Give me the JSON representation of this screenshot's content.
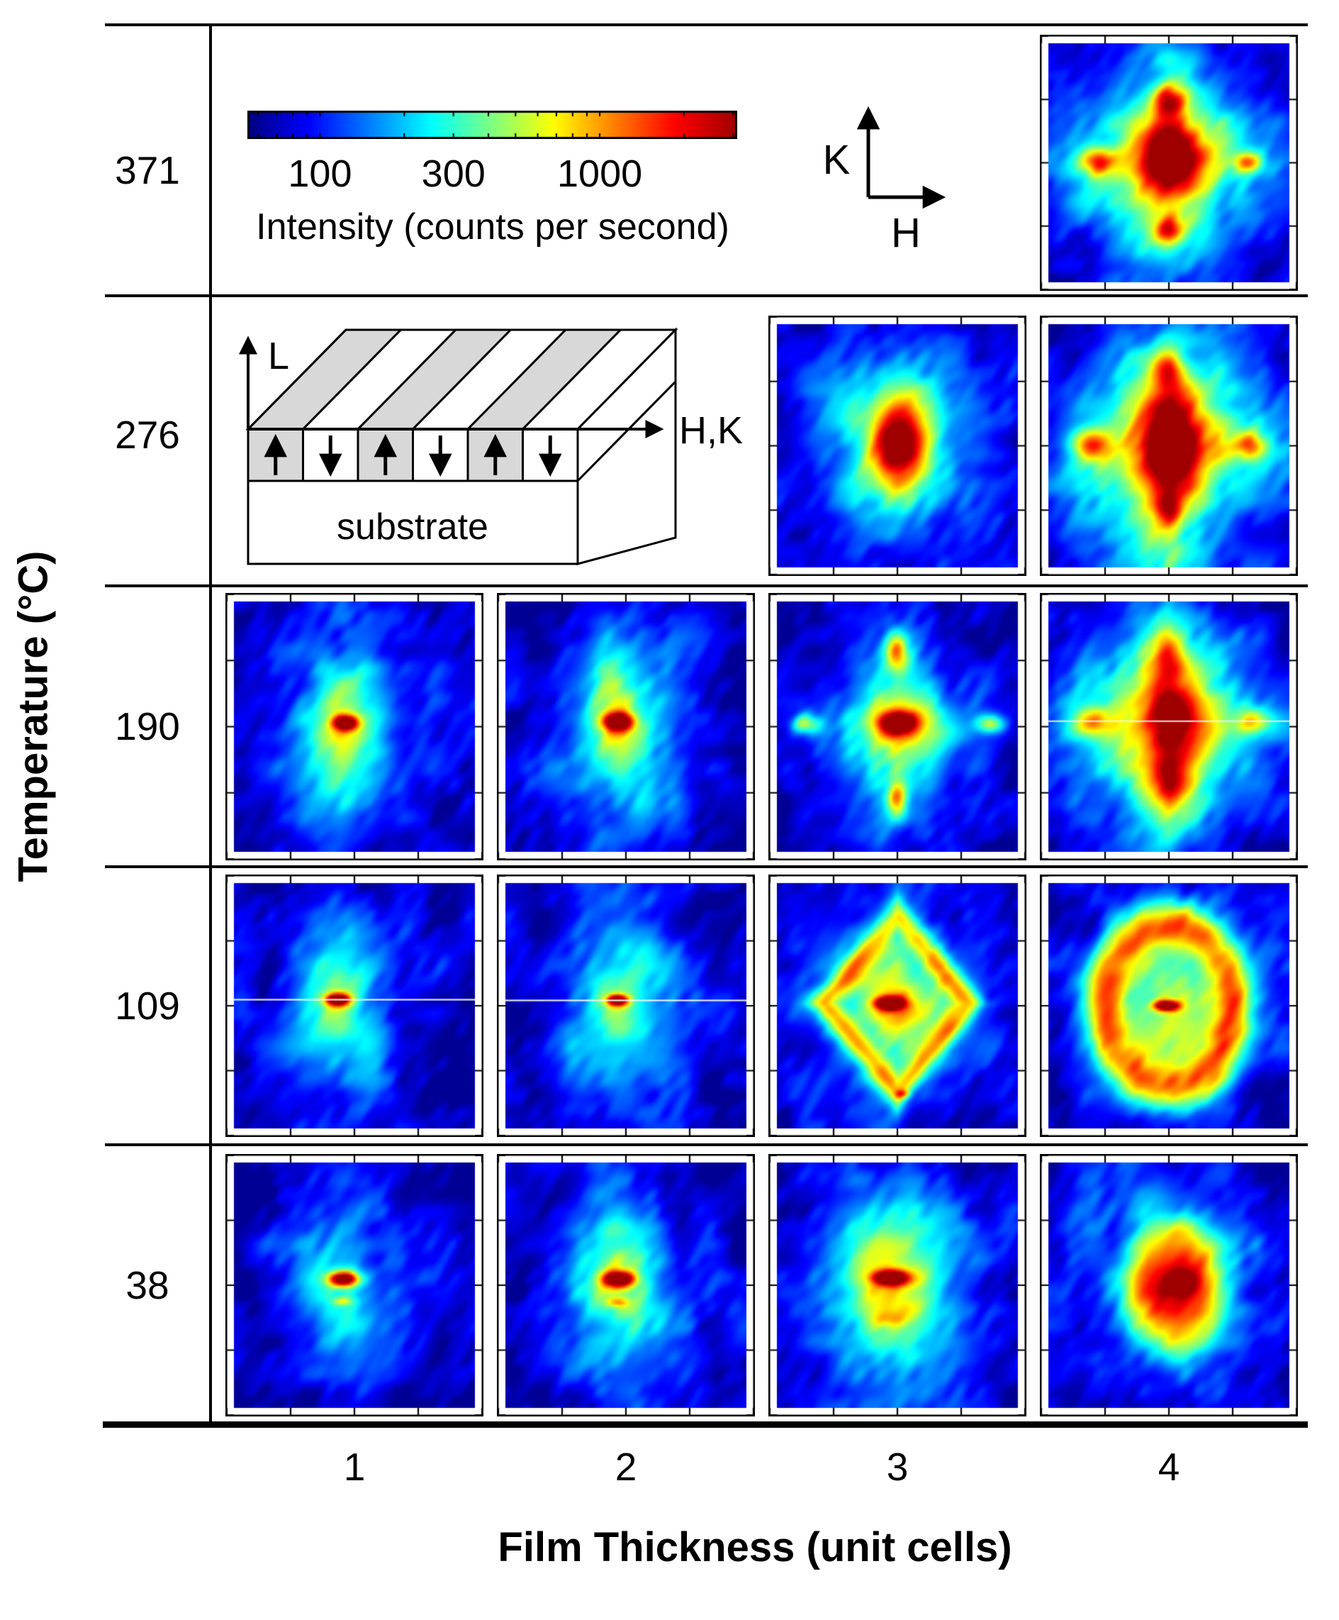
{
  "figure": {
    "ylabel": "Temperature (°C)",
    "xlabel": "Film Thickness (unit cells)",
    "row_labels": [
      "371",
      "276",
      "190",
      "109",
      "38"
    ],
    "col_labels": [
      "1",
      "2",
      "3",
      "4"
    ],
    "colorbar": {
      "label": "Intensity (counts per second)",
      "tick_labels": [
        "100",
        "300",
        "1000"
      ],
      "tick_values": [
        100,
        300,
        1000
      ],
      "minor_ticks": [
        60,
        70,
        80,
        90,
        100,
        200,
        300,
        400,
        500,
        600,
        700,
        800,
        900,
        1000,
        2000,
        3000
      ],
      "scale": "log",
      "range_min": 55,
      "range_max": 3100
    },
    "axes_key": {
      "vertical": "K",
      "horizontal": "H"
    },
    "schematic": {
      "vertical_axis": "L",
      "horizontal_axis": "H,K",
      "substrate": "substrate",
      "domain_arrows": [
        "up",
        "down",
        "up",
        "down",
        "up",
        "down"
      ],
      "stripe_gray": "#d8d8d8",
      "stripe_white": "#ffffff"
    }
  },
  "chart_data": {
    "type": "heatmap",
    "colormap": "jet",
    "x_dimension": "Film Thickness (unit cells)",
    "y_dimension": "Temperature (°C)",
    "temperatures": [
      371,
      276,
      190,
      109,
      38
    ],
    "thicknesses": [
      1,
      2,
      3,
      4
    ],
    "intensity_units": "counts per second",
    "intensity_scale": {
      "type": "log",
      "min": 55,
      "max": 3100,
      "labeled_ticks": [
        100,
        300,
        1000
      ]
    },
    "panels": [
      {
        "temperature": 371,
        "thickness": 4,
        "seed": 1,
        "base": 0.15,
        "hline": null,
        "description": "Four-fold diffuse star: intense central peak with satellites above, below, left and right",
        "features": [
          {
            "t": "diamond",
            "x": 0.5,
            "y": 0.49,
            "rx": 0.4,
            "ry": 0.46,
            "a": 0.38
          },
          {
            "t": "gauss",
            "x": 0.5,
            "y": 0.49,
            "sx": 0.3,
            "sy": 0.34,
            "a": 0.12
          },
          {
            "t": "gauss",
            "x": 0.5,
            "y": 0.47,
            "sx": 0.1,
            "sy": 0.13,
            "a": 0.45
          },
          {
            "t": "gauss",
            "x": 0.5,
            "y": 0.47,
            "sx": 0.06,
            "sy": 0.085,
            "a": 0.28
          },
          {
            "t": "gauss",
            "x": 0.5,
            "y": 0.235,
            "sx": 0.05,
            "sy": 0.045,
            "a": 0.42
          },
          {
            "t": "gauss",
            "x": 0.5,
            "y": 0.78,
            "sx": 0.045,
            "sy": 0.04,
            "a": 0.4
          },
          {
            "t": "gauss",
            "x": 0.21,
            "y": 0.5,
            "sx": 0.05,
            "sy": 0.04,
            "a": 0.45
          },
          {
            "t": "gauss",
            "x": 0.83,
            "y": 0.5,
            "sx": 0.04,
            "sy": 0.03,
            "a": 0.42
          }
        ]
      },
      {
        "temperature": 276,
        "thickness": 3,
        "seed": 2,
        "base": 0.14,
        "hline": null,
        "description": "Single intense central peak with broad diffuse halo",
        "features": [
          {
            "t": "gauss",
            "x": 0.5,
            "y": 0.5,
            "sx": 0.2,
            "sy": 0.27,
            "a": 0.3
          },
          {
            "t": "gauss",
            "x": 0.5,
            "y": 0.5,
            "sx": 0.115,
            "sy": 0.175,
            "a": 0.3
          },
          {
            "t": "gauss",
            "x": 0.5,
            "y": 0.49,
            "sx": 0.065,
            "sy": 0.115,
            "a": 0.5
          }
        ]
      },
      {
        "temperature": 276,
        "thickness": 4,
        "seed": 3,
        "base": 0.15,
        "hline": null,
        "description": "Intense central peak with four satellite peaks forming a diamond-shaped diffuse star",
        "features": [
          {
            "t": "diamond",
            "x": 0.5,
            "y": 0.5,
            "rx": 0.42,
            "ry": 0.5,
            "a": 0.42
          },
          {
            "t": "gauss",
            "x": 0.5,
            "y": 0.5,
            "sx": 0.28,
            "sy": 0.34,
            "a": 0.15
          },
          {
            "t": "gauss",
            "x": 0.5,
            "y": 0.5,
            "sx": 0.09,
            "sy": 0.16,
            "a": 0.42
          },
          {
            "t": "gauss",
            "x": 0.5,
            "y": 0.49,
            "sx": 0.055,
            "sy": 0.1,
            "a": 0.28
          },
          {
            "t": "gauss",
            "x": 0.18,
            "y": 0.5,
            "sx": 0.05,
            "sy": 0.045,
            "a": 0.4
          },
          {
            "t": "gauss",
            "x": 0.84,
            "y": 0.5,
            "sx": 0.045,
            "sy": 0.04,
            "a": 0.38
          },
          {
            "t": "gauss",
            "x": 0.5,
            "y": 0.19,
            "sx": 0.045,
            "sy": 0.05,
            "a": 0.38
          },
          {
            "t": "gauss",
            "x": 0.5,
            "y": 0.76,
            "sx": 0.04,
            "sy": 0.05,
            "a": 0.36
          },
          {
            "t": "gauss",
            "x": 0.5,
            "y": 0.99,
            "sx": 0.14,
            "sy": 0.09,
            "a": 0.15
          }
        ]
      },
      {
        "temperature": 190,
        "thickness": 1,
        "seed": 4,
        "base": 0.13,
        "hline": null,
        "description": "Weak sharp central spot on diffuse vertical streak",
        "features": [
          {
            "t": "gauss",
            "x": 0.47,
            "y": 0.52,
            "sx": 0.16,
            "sy": 0.3,
            "a": 0.26
          },
          {
            "t": "gauss",
            "x": 0.46,
            "y": 0.5,
            "sx": 0.085,
            "sy": 0.16,
            "a": 0.17
          },
          {
            "t": "gauss",
            "x": 0.465,
            "y": 0.485,
            "sx": 0.034,
            "sy": 0.02,
            "a": 0.75
          }
        ]
      },
      {
        "temperature": 190,
        "thickness": 2,
        "seed": 5,
        "base": 0.13,
        "hline": null,
        "description": "Sharp central spot with stronger diffuse halo",
        "features": [
          {
            "t": "gauss",
            "x": 0.48,
            "y": 0.5,
            "sx": 0.17,
            "sy": 0.3,
            "a": 0.28
          },
          {
            "t": "gauss",
            "x": 0.47,
            "y": 0.5,
            "sx": 0.09,
            "sy": 0.16,
            "a": 0.2
          },
          {
            "t": "gauss",
            "x": 0.47,
            "y": 0.48,
            "sx": 0.042,
            "sy": 0.024,
            "a": 0.78
          }
        ]
      },
      {
        "temperature": 190,
        "thickness": 3,
        "seed": 6,
        "base": 0.13,
        "hline": null,
        "description": "Central spot with four weak satellite peaks (cross pattern) in diffuse halo",
        "features": [
          {
            "t": "gauss",
            "x": 0.5,
            "y": 0.5,
            "sx": 0.14,
            "sy": 0.28,
            "a": 0.25
          },
          {
            "t": "gauss",
            "x": 0.5,
            "y": 0.49,
            "sx": 0.26,
            "sy": 0.1,
            "a": 0.18
          },
          {
            "t": "gauss",
            "x": 0.5,
            "y": 0.49,
            "sx": 0.1,
            "sy": 0.07,
            "a": 0.25
          },
          {
            "t": "gauss",
            "x": 0.5,
            "y": 0.485,
            "sx": 0.048,
            "sy": 0.028,
            "a": 0.72
          },
          {
            "t": "gauss",
            "x": 0.5,
            "y": 0.2,
            "sx": 0.032,
            "sy": 0.05,
            "a": 0.5
          },
          {
            "t": "gauss",
            "x": 0.5,
            "y": 0.79,
            "sx": 0.028,
            "sy": 0.05,
            "a": 0.48
          },
          {
            "t": "gauss",
            "x": 0.12,
            "y": 0.49,
            "sx": 0.045,
            "sy": 0.028,
            "a": 0.38
          },
          {
            "t": "gauss",
            "x": 0.89,
            "y": 0.49,
            "sx": 0.042,
            "sy": 0.026,
            "a": 0.4
          }
        ]
      },
      {
        "temperature": 190,
        "thickness": 4,
        "seed": 7,
        "base": 0.15,
        "hline": {
          "y": 0.478,
          "alpha": 0.8
        },
        "description": "Strong diamond-shaped diffuse scattering with intense central column and satellites; horizontal detector line",
        "features": [
          {
            "t": "diamond",
            "x": 0.5,
            "y": 0.5,
            "rx": 0.4,
            "ry": 0.47,
            "a": 0.55
          },
          {
            "t": "gauss",
            "x": 0.5,
            "y": 0.5,
            "sx": 0.085,
            "sy": 0.22,
            "a": 0.28
          },
          {
            "t": "gauss",
            "x": 0.5,
            "y": 0.47,
            "sx": 0.055,
            "sy": 0.1,
            "a": 0.18
          },
          {
            "t": "gauss",
            "x": 0.17,
            "y": 0.48,
            "sx": 0.055,
            "sy": 0.045,
            "a": 0.35
          },
          {
            "t": "gauss",
            "x": 0.85,
            "y": 0.48,
            "sx": 0.05,
            "sy": 0.04,
            "a": 0.33
          },
          {
            "t": "gauss",
            "x": 0.5,
            "y": 0.21,
            "sx": 0.05,
            "sy": 0.06,
            "a": 0.24
          },
          {
            "t": "gauss",
            "x": 0.5,
            "y": 0.73,
            "sx": 0.045,
            "sy": 0.06,
            "a": 0.24
          }
        ]
      },
      {
        "temperature": 109,
        "thickness": 1,
        "seed": 8,
        "base": 0.12,
        "hline": {
          "y": 0.475,
          "alpha": 0.9
        },
        "description": "Sharp central spot on weak diffuse halo; horizontal detector line",
        "features": [
          {
            "t": "gauss",
            "x": 0.44,
            "y": 0.53,
            "sx": 0.16,
            "sy": 0.3,
            "a": 0.22
          },
          {
            "t": "gauss",
            "x": 0.43,
            "y": 0.5,
            "sx": 0.08,
            "sy": 0.15,
            "a": 0.16
          },
          {
            "t": "gauss",
            "x": 0.43,
            "y": 0.475,
            "sx": 0.035,
            "sy": 0.018,
            "a": 0.8
          }
        ]
      },
      {
        "temperature": 109,
        "thickness": 2,
        "seed": 9,
        "base": 0.12,
        "hline": {
          "y": 0.478,
          "alpha": 0.9
        },
        "description": "Sharp central spot on weak diffuse halo; horizontal detector line",
        "features": [
          {
            "t": "gauss",
            "x": 0.47,
            "y": 0.52,
            "sx": 0.17,
            "sy": 0.3,
            "a": 0.24
          },
          {
            "t": "gauss",
            "x": 0.46,
            "y": 0.5,
            "sx": 0.085,
            "sy": 0.15,
            "a": 0.16
          },
          {
            "t": "gauss",
            "x": 0.465,
            "y": 0.478,
            "sx": 0.03,
            "sy": 0.016,
            "a": 0.8
          }
        ]
      },
      {
        "temperature": 109,
        "thickness": 3,
        "seed": 10,
        "base": 0.13,
        "hline": null,
        "description": "Hollow diamond-shaped diffuse ring surrounding sharp central spot",
        "features": [
          {
            "t": "gauss",
            "x": 0.5,
            "y": 0.5,
            "sx": 0.25,
            "sy": 0.3,
            "a": 0.12
          },
          {
            "t": "dring",
            "x": 0.5,
            "y": 0.49,
            "rx": 0.3,
            "ry": 0.36,
            "w": 0.22,
            "a": 0.42
          },
          {
            "t": "diamond",
            "x": 0.5,
            "y": 0.49,
            "rx": 0.3,
            "ry": 0.36,
            "a": 0.26
          },
          {
            "t": "gauss",
            "x": 0.5,
            "y": 0.49,
            "sx": 0.1,
            "sy": 0.12,
            "a": 0.18
          },
          {
            "t": "gauss",
            "x": 0.47,
            "y": 0.49,
            "sx": 0.04,
            "sy": 0.018,
            "a": 0.85
          },
          {
            "t": "gauss",
            "x": 0.52,
            "y": 0.86,
            "sx": 0.02,
            "sy": 0.012,
            "a": 0.28
          }
        ]
      },
      {
        "temperature": 109,
        "thickness": 4,
        "seed": 11,
        "base": 0.13,
        "hline": null,
        "description": "Intense closed diffuse ring (annulus) surrounding sharp central spot",
        "features": [
          {
            "t": "gauss",
            "x": 0.5,
            "y": 0.5,
            "sx": 0.27,
            "sy": 0.32,
            "a": 0.15
          },
          {
            "t": "ring",
            "x": 0.5,
            "y": 0.5,
            "rx": 0.27,
            "ry": 0.335,
            "w": 0.3,
            "a": 0.5
          },
          {
            "t": "disc",
            "x": 0.5,
            "y": 0.5,
            "rx": 0.27,
            "ry": 0.335,
            "a": 0.18
          },
          {
            "t": "gauss",
            "x": 0.5,
            "y": 0.5,
            "sx": 0.09,
            "sy": 0.11,
            "a": 0.14
          },
          {
            "t": "gauss",
            "x": 0.49,
            "y": 0.5,
            "sx": 0.035,
            "sy": 0.015,
            "a": 0.8
          }
        ]
      },
      {
        "temperature": 38,
        "thickness": 1,
        "seed": 12,
        "base": 0.11,
        "hline": null,
        "description": "Sharp central spot on weak diffuse background",
        "features": [
          {
            "t": "gauss",
            "x": 0.46,
            "y": 0.53,
            "sx": 0.15,
            "sy": 0.28,
            "a": 0.2
          },
          {
            "t": "gauss",
            "x": 0.45,
            "y": 0.5,
            "sx": 0.08,
            "sy": 0.14,
            "a": 0.1
          },
          {
            "t": "gauss",
            "x": 0.455,
            "y": 0.475,
            "sx": 0.042,
            "sy": 0.02,
            "a": 0.8
          },
          {
            "t": "gauss",
            "x": 0.45,
            "y": 0.565,
            "sx": 0.03,
            "sy": 0.012,
            "a": 0.22
          }
        ]
      },
      {
        "temperature": 38,
        "thickness": 2,
        "seed": 13,
        "base": 0.13,
        "hline": null,
        "description": "Sharp central spot on moderate diffuse halo",
        "features": [
          {
            "t": "gauss",
            "x": 0.48,
            "y": 0.5,
            "sx": 0.17,
            "sy": 0.3,
            "a": 0.26
          },
          {
            "t": "gauss",
            "x": 0.47,
            "y": 0.5,
            "sx": 0.09,
            "sy": 0.16,
            "a": 0.16
          },
          {
            "t": "gauss",
            "x": 0.47,
            "y": 0.475,
            "sx": 0.045,
            "sy": 0.022,
            "a": 0.8
          },
          {
            "t": "gauss",
            "x": 0.465,
            "y": 0.57,
            "sx": 0.03,
            "sy": 0.013,
            "a": 0.25
          }
        ]
      },
      {
        "temperature": 38,
        "thickness": 3,
        "seed": 14,
        "base": 0.14,
        "hline": null,
        "description": "Sharp central spot on strong broad diffuse halo",
        "features": [
          {
            "t": "gauss",
            "x": 0.48,
            "y": 0.5,
            "sx": 0.21,
            "sy": 0.3,
            "a": 0.32
          },
          {
            "t": "gauss",
            "x": 0.47,
            "y": 0.5,
            "sx": 0.13,
            "sy": 0.2,
            "a": 0.18
          },
          {
            "t": "gauss",
            "x": 0.47,
            "y": 0.47,
            "sx": 0.046,
            "sy": 0.02,
            "a": 0.85
          },
          {
            "t": "gauss",
            "x": 0.47,
            "y": 0.64,
            "sx": 0.05,
            "sy": 0.025,
            "a": 0.18
          }
        ]
      },
      {
        "temperature": 38,
        "thickness": 4,
        "seed": 15,
        "base": 0.14,
        "hline": null,
        "description": "Filled intense diffuse disc with dark central core",
        "features": [
          {
            "t": "gauss",
            "x": 0.5,
            "y": 0.5,
            "sx": 0.28,
            "sy": 0.34,
            "a": 0.16
          },
          {
            "t": "disc",
            "x": 0.52,
            "y": 0.5,
            "rx": 0.22,
            "ry": 0.28,
            "a": 0.45
          },
          {
            "t": "gauss",
            "x": 0.53,
            "y": 0.5,
            "sx": 0.1,
            "sy": 0.12,
            "a": 0.12
          },
          {
            "t": "gauss",
            "x": 0.55,
            "y": 0.49,
            "sx": 0.05,
            "sy": 0.035,
            "a": 0.35
          }
        ]
      }
    ]
  }
}
